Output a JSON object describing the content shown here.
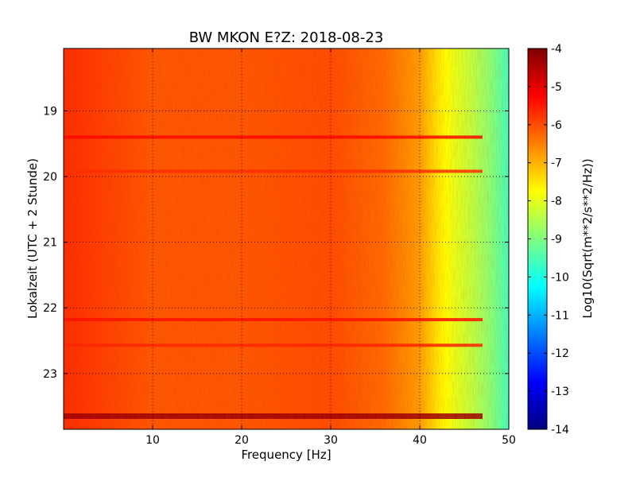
{
  "chart_data": {
    "type": "heatmap",
    "title": "BW MKON E?Z: 2018-08-23",
    "xlabel": "Frequency [Hz]",
    "ylabel": "Lokalzeit (UTC + 2 Stunde)",
    "xlim": [
      0,
      50
    ],
    "ylim": [
      18.05,
      23.85
    ],
    "y_inverted": true,
    "x_ticks": [
      "10",
      "20",
      "30",
      "40",
      "50"
    ],
    "y_ticks": [
      "19",
      "20",
      "21",
      "22",
      "23"
    ],
    "grid": true,
    "colormap": "jet",
    "colorbar": {
      "label": "Log10(Sqrt(m**2/s**2/Hz))",
      "range": [
        -14,
        -4
      ],
      "ticks": [
        "-4",
        "-5",
        "-6",
        "-7",
        "-8",
        "-9",
        "-10",
        "-11",
        "-12",
        "-13",
        "-14"
      ]
    },
    "spectrum_profile": [
      {
        "frequency": 0,
        "value": -5.7
      },
      {
        "frequency": 10,
        "value": -6.1
      },
      {
        "frequency": 20,
        "value": -6.1
      },
      {
        "frequency": 30,
        "value": -6.0
      },
      {
        "frequency": 36,
        "value": -6.3
      },
      {
        "frequency": 40,
        "value": -6.8
      },
      {
        "frequency": 42,
        "value": -7.5
      },
      {
        "frequency": 44,
        "value": -8.0
      },
      {
        "frequency": 46,
        "value": -8.4
      },
      {
        "frequency": 48,
        "value": -8.9
      },
      {
        "frequency": 50,
        "value": -9.6
      }
    ],
    "bands": [
      {
        "time": 19.4,
        "value": -5.3
      },
      {
        "time": 19.92,
        "value": -5.7
      },
      {
        "time": 22.18,
        "value": -5.4
      },
      {
        "time": 22.57,
        "value": -5.6
      },
      {
        "time": 23.65,
        "value": -4.3
      }
    ],
    "colors": {
      "jet": [
        "#00007f",
        "#0000ff",
        "#007fff",
        "#00ffff",
        "#7fff7f",
        "#ffff00",
        "#ff7f00",
        "#ff0000",
        "#7f0000"
      ]
    }
  }
}
